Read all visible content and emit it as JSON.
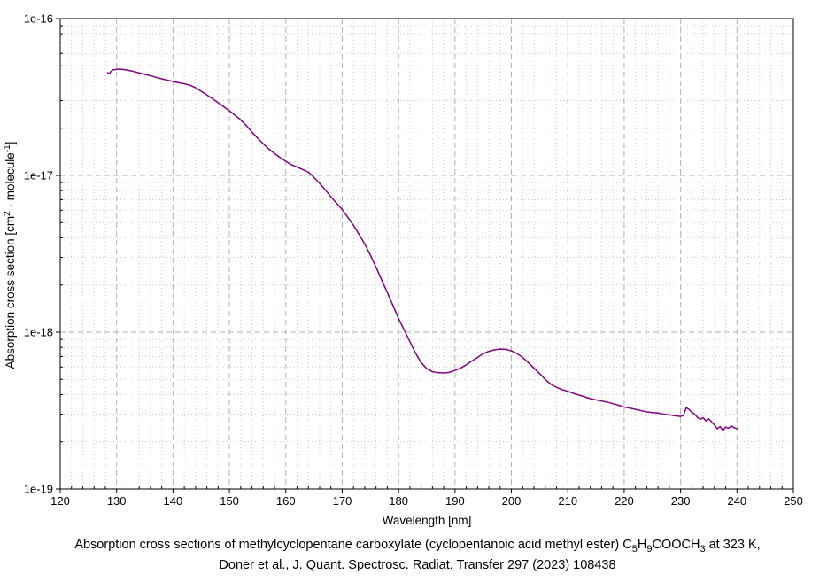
{
  "page": {
    "background": "#ffffff",
    "text_color": "#000000"
  },
  "chart_data": {
    "type": "line",
    "title": "",
    "xlabel": "Wavelength [nm]",
    "ylabel": "Absorption cross section [cm2 · molecule-1]",
    "ylabel_parts": [
      {
        "t": "Absorption cross section [cm"
      },
      {
        "t": "2",
        "sup": true
      },
      {
        "t": " · molecule"
      },
      {
        "t": "-1",
        "sup": true
      },
      {
        "t": "]"
      }
    ],
    "xlim": [
      120,
      250
    ],
    "ylim": [
      1e-19,
      1e-16
    ],
    "y_scale": "log",
    "grid": true,
    "legend": "none",
    "x_major_ticks": [
      120,
      130,
      140,
      150,
      160,
      170,
      180,
      190,
      200,
      210,
      220,
      230,
      240,
      250
    ],
    "x_minor_step": 2,
    "y_major_ticks": [
      {
        "value": 1e-16,
        "label": "1e-16"
      },
      {
        "value": 1e-17,
        "label": "1e-17"
      },
      {
        "value": 1e-18,
        "label": "1e-18"
      },
      {
        "value": 1e-19,
        "label": "1e-19"
      }
    ],
    "colors": {
      "line": "#800080",
      "axis": "#000000",
      "grid_major": "#b2b2b2",
      "grid_minor": "#c9c9c9"
    },
    "series": [
      {
        "name": "C5H9COOCH3 absorption cross section at 323 K",
        "points": [
          [
            128.4,
            4.52e-17
          ],
          [
            128.7,
            4.46e-17
          ],
          [
            129.0,
            4.6e-17
          ],
          [
            129.4,
            4.72e-17
          ],
          [
            130,
            4.75e-17
          ],
          [
            130.5,
            4.76e-17
          ],
          [
            131,
            4.75e-17
          ],
          [
            131.5,
            4.72e-17
          ],
          [
            132,
            4.68e-17
          ],
          [
            132.5,
            4.65e-17
          ],
          [
            133,
            4.6e-17
          ],
          [
            134,
            4.5e-17
          ],
          [
            135,
            4.41e-17
          ],
          [
            136,
            4.32e-17
          ],
          [
            137,
            4.22e-17
          ],
          [
            138,
            4.13e-17
          ],
          [
            139,
            4.05e-17
          ],
          [
            140,
            3.97e-17
          ],
          [
            141,
            3.9e-17
          ],
          [
            142,
            3.84e-17
          ],
          [
            143,
            3.76e-17
          ],
          [
            144,
            3.62e-17
          ],
          [
            145,
            3.44e-17
          ],
          [
            146,
            3.26e-17
          ],
          [
            147,
            3.08e-17
          ],
          [
            148,
            2.91e-17
          ],
          [
            149,
            2.74e-17
          ],
          [
            150,
            2.58e-17
          ],
          [
            151,
            2.42e-17
          ],
          [
            152,
            2.26e-17
          ],
          [
            153,
            2.08e-17
          ],
          [
            154,
            1.89e-17
          ],
          [
            155,
            1.73e-17
          ],
          [
            156,
            1.59e-17
          ],
          [
            157,
            1.47e-17
          ],
          [
            158,
            1.38e-17
          ],
          [
            159,
            1.3e-17
          ],
          [
            160,
            1.23e-17
          ],
          [
            161,
            1.17e-17
          ],
          [
            162,
            1.13e-17
          ],
          [
            163,
            1.09e-17
          ],
          [
            164,
            1.05e-17
          ],
          [
            165,
            9.7e-18
          ],
          [
            166,
            8.9e-18
          ],
          [
            167,
            8.1e-18
          ],
          [
            168,
            7.3e-18
          ],
          [
            169,
            6.65e-18
          ],
          [
            170,
            6.05e-18
          ],
          [
            171,
            5.4e-18
          ],
          [
            172,
            4.8e-18
          ],
          [
            173,
            4.2e-18
          ],
          [
            174,
            3.65e-18
          ],
          [
            175,
            3.1e-18
          ],
          [
            176,
            2.6e-18
          ],
          [
            177,
            2.15e-18
          ],
          [
            178,
            1.79e-18
          ],
          [
            179,
            1.48e-18
          ],
          [
            180,
            1.22e-18
          ],
          [
            181,
            1.03e-18
          ],
          [
            182,
            8.7e-19
          ],
          [
            183,
            7.35e-19
          ],
          [
            184,
            6.4e-19
          ],
          [
            185,
            5.85e-19
          ],
          [
            186,
            5.6e-19
          ],
          [
            187,
            5.52e-19
          ],
          [
            188,
            5.5e-19
          ],
          [
            189,
            5.55e-19
          ],
          [
            190,
            5.7e-19
          ],
          [
            191,
            5.9e-19
          ],
          [
            192,
            6.2e-19
          ],
          [
            193,
            6.55e-19
          ],
          [
            194,
            6.9e-19
          ],
          [
            195,
            7.3e-19
          ],
          [
            196,
            7.55e-19
          ],
          [
            197,
            7.72e-19
          ],
          [
            198,
            7.8e-19
          ],
          [
            199,
            7.78e-19
          ],
          [
            200,
            7.6e-19
          ],
          [
            201,
            7.3e-19
          ],
          [
            202,
            6.9e-19
          ],
          [
            203,
            6.4e-19
          ],
          [
            204,
            5.9e-19
          ],
          [
            205,
            5.45e-19
          ],
          [
            206,
            5e-19
          ],
          [
            207,
            4.65e-19
          ],
          [
            208,
            4.45e-19
          ],
          [
            209,
            4.3e-19
          ],
          [
            210,
            4.2e-19
          ],
          [
            211,
            4.07e-19
          ],
          [
            212,
            3.97e-19
          ],
          [
            213,
            3.87e-19
          ],
          [
            214,
            3.77e-19
          ],
          [
            215,
            3.7e-19
          ],
          [
            216,
            3.64e-19
          ],
          [
            217,
            3.58e-19
          ],
          [
            218,
            3.5e-19
          ],
          [
            219,
            3.42e-19
          ],
          [
            220,
            3.33e-19
          ],
          [
            221,
            3.28e-19
          ],
          [
            222,
            3.22e-19
          ],
          [
            223,
            3.16e-19
          ],
          [
            224,
            3.1e-19
          ],
          [
            225,
            3.07e-19
          ],
          [
            226,
            3.05e-19
          ],
          [
            227,
            3e-19
          ],
          [
            228,
            2.97e-19
          ],
          [
            229,
            2.93e-19
          ],
          [
            230,
            2.9e-19
          ],
          [
            230.5,
            2.95e-19
          ],
          [
            231,
            3.3e-19
          ],
          [
            231.5,
            3.22e-19
          ],
          [
            232,
            3.08e-19
          ],
          [
            232.5,
            3e-19
          ],
          [
            233,
            2.86e-19
          ],
          [
            233.5,
            2.78e-19
          ],
          [
            234,
            2.85e-19
          ],
          [
            234.5,
            2.72e-19
          ],
          [
            235,
            2.8e-19
          ],
          [
            235.5,
            2.68e-19
          ],
          [
            236,
            2.56e-19
          ],
          [
            236.5,
            2.42e-19
          ],
          [
            237,
            2.5e-19
          ],
          [
            237.5,
            2.36e-19
          ],
          [
            238,
            2.48e-19
          ],
          [
            238.5,
            2.44e-19
          ],
          [
            239,
            2.52e-19
          ],
          [
            239.5,
            2.46e-19
          ],
          [
            240,
            2.42e-19
          ]
        ]
      }
    ]
  },
  "caption": {
    "line1_text": "Absorption cross sections of methylcyclopentane carboxylate (cyclopentanoic acid methyl ester) C5H9COOCH3 at 323 K,",
    "line1_parts": [
      {
        "t": "Absorption cross sections of methylcyclopentane carboxylate (cyclopentanoic acid methyl ester) C"
      },
      {
        "t": "5",
        "sub": true
      },
      {
        "t": "H"
      },
      {
        "t": "9",
        "sub": true
      },
      {
        "t": "COOCH"
      },
      {
        "t": "3",
        "sub": true
      },
      {
        "t": " at 323 K,"
      }
    ],
    "line2": "Doner et al., J. Quant. Spectrosc. Radiat. Transfer 297 (2023) 108438"
  }
}
